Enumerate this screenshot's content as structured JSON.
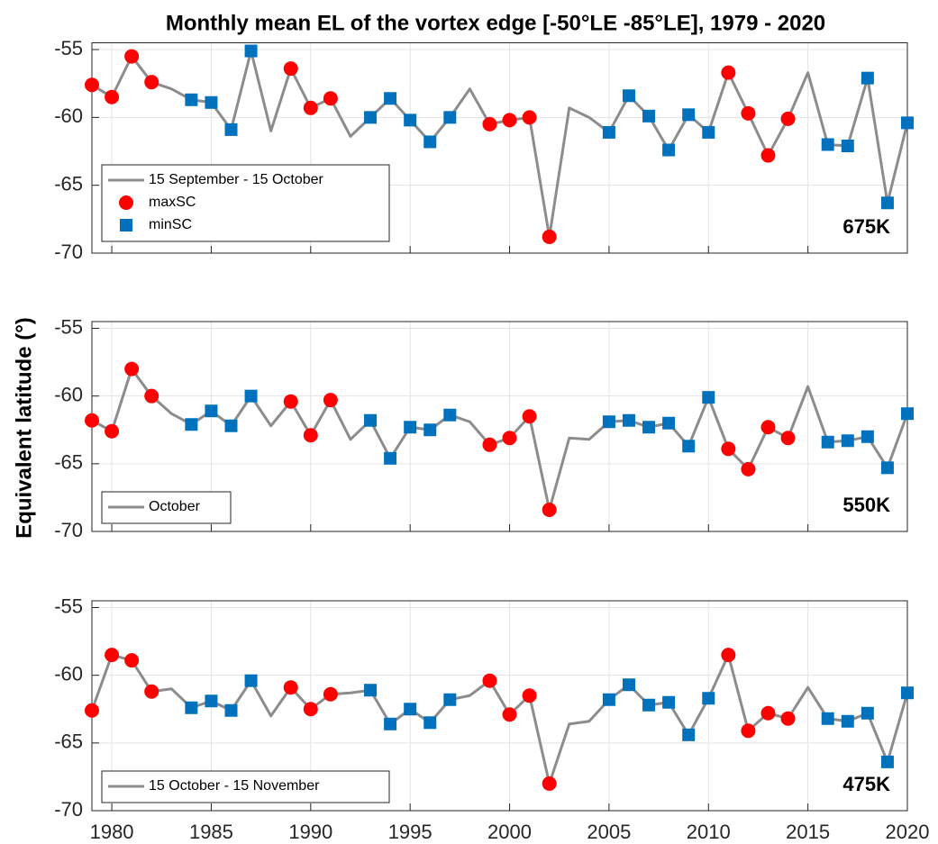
{
  "chart_data": [
    {
      "type": "line",
      "title": "Monthly mean EL of the vortex edge [-50°LE -85°LE], 1979 - 2020",
      "annotation": "675K",
      "x": [
        1979,
        1980,
        1981,
        1982,
        1983,
        1984,
        1985,
        1986,
        1987,
        1988,
        1989,
        1990,
        1991,
        1992,
        1993,
        1994,
        1995,
        1996,
        1997,
        1998,
        1999,
        2000,
        2001,
        2002,
        2003,
        2004,
        2005,
        2006,
        2007,
        2008,
        2009,
        2010,
        2011,
        2012,
        2013,
        2014,
        2015,
        2016,
        2017,
        2018,
        2019,
        2020
      ],
      "xlim": [
        1979,
        2020
      ],
      "xticks": [
        1980,
        1985,
        1990,
        1995,
        2000,
        2005,
        2010,
        2015,
        2020
      ],
      "show_xtick_labels": false,
      "ylim": [
        -70,
        -54.5
      ],
      "yticks": [
        -70,
        -65,
        -60,
        -55
      ],
      "grid": true,
      "legend": "lower left",
      "series": [
        {
          "name": "15 September - 15 October",
          "color": "#8c8c8c",
          "marker": "none",
          "values": [
            -57.6,
            -58.5,
            -55.5,
            -57.4,
            -57.9,
            -58.7,
            -58.9,
            -60.9,
            -55.1,
            -61.0,
            -56.4,
            -59.3,
            -58.6,
            -61.4,
            -60.0,
            -58.6,
            -60.2,
            -61.8,
            -60.0,
            -57.9,
            -60.5,
            -60.2,
            -60.0,
            -68.8,
            -59.3,
            -60.0,
            -61.1,
            -58.4,
            -59.9,
            -62.4,
            -59.8,
            -61.1,
            -56.7,
            -59.7,
            -62.8,
            -60.1,
            -56.7,
            -62.0,
            -62.1,
            -57.1,
            -66.3,
            -60.4
          ]
        },
        {
          "name": "maxSC",
          "color": "#ff0000",
          "marker": "circle",
          "x": [
            1979,
            1980,
            1981,
            1982,
            1989,
            1990,
            1991,
            1999,
            2000,
            2001,
            2002,
            2011,
            2012,
            2013,
            2014
          ],
          "values": [
            -57.6,
            -58.5,
            -55.5,
            -57.4,
            -56.4,
            -59.3,
            -58.6,
            -60.5,
            -60.2,
            -60.0,
            -68.8,
            -56.7,
            -59.7,
            -62.8,
            -60.1
          ]
        },
        {
          "name": "minSC",
          "color": "#0072bd",
          "marker": "square",
          "x": [
            1984,
            1985,
            1986,
            1987,
            1993,
            1994,
            1995,
            1996,
            1997,
            2005,
            2006,
            2007,
            2008,
            2009,
            2010,
            2016,
            2017,
            2018,
            2019,
            2020
          ],
          "values": [
            -58.7,
            -58.9,
            -60.9,
            -55.1,
            -60.0,
            -58.6,
            -60.2,
            -61.8,
            -60.0,
            -61.1,
            -58.4,
            -59.9,
            -62.4,
            -59.8,
            -61.1,
            -62.0,
            -62.1,
            -57.1,
            -66.3,
            -60.4
          ]
        }
      ]
    },
    {
      "type": "line",
      "ylabel": "Equivalent latitude (°)",
      "annotation": "550K",
      "x": [
        1979,
        1980,
        1981,
        1982,
        1983,
        1984,
        1985,
        1986,
        1987,
        1988,
        1989,
        1990,
        1991,
        1992,
        1993,
        1994,
        1995,
        1996,
        1997,
        1998,
        1999,
        2000,
        2001,
        2002,
        2003,
        2004,
        2005,
        2006,
        2007,
        2008,
        2009,
        2010,
        2011,
        2012,
        2013,
        2014,
        2015,
        2016,
        2017,
        2018,
        2019,
        2020
      ],
      "xlim": [
        1979,
        2020
      ],
      "xticks": [
        1980,
        1985,
        1990,
        1995,
        2000,
        2005,
        2010,
        2015,
        2020
      ],
      "show_xtick_labels": false,
      "ylim": [
        -70,
        -54.5
      ],
      "yticks": [
        -70,
        -65,
        -60,
        -55
      ],
      "grid": true,
      "legend": "lower left",
      "series": [
        {
          "name": "October",
          "color": "#8c8c8c",
          "marker": "none",
          "values": [
            -61.8,
            -62.6,
            -58.0,
            -60.0,
            -61.3,
            -62.1,
            -61.1,
            -62.2,
            -60.0,
            -62.2,
            -60.4,
            -62.9,
            -60.3,
            -63.2,
            -61.8,
            -64.6,
            -62.3,
            -62.5,
            -61.4,
            -61.9,
            -63.6,
            -63.1,
            -61.5,
            -68.4,
            -63.1,
            -63.2,
            -61.9,
            -61.8,
            -62.3,
            -62.0,
            -63.7,
            -60.1,
            -63.9,
            -65.4,
            -62.3,
            -63.1,
            -59.3,
            -63.4,
            -63.3,
            -63.0,
            -65.3,
            -61.3
          ]
        },
        {
          "color": "#ff0000",
          "marker": "circle",
          "x": [
            1979,
            1980,
            1981,
            1982,
            1989,
            1990,
            1991,
            1999,
            2000,
            2001,
            2002,
            2011,
            2012,
            2013,
            2014
          ],
          "values": [
            -61.8,
            -62.6,
            -58.0,
            -60.0,
            -60.4,
            -62.9,
            -60.3,
            -63.6,
            -63.1,
            -61.5,
            -68.4,
            -63.9,
            -65.4,
            -62.3,
            -63.1
          ]
        },
        {
          "color": "#0072bd",
          "marker": "square",
          "x": [
            1984,
            1985,
            1986,
            1987,
            1993,
            1994,
            1995,
            1996,
            1997,
            2005,
            2006,
            2007,
            2008,
            2009,
            2010,
            2016,
            2017,
            2018,
            2019,
            2020
          ],
          "values": [
            -62.1,
            -61.1,
            -62.2,
            -60.0,
            -61.8,
            -64.6,
            -62.3,
            -62.5,
            -61.4,
            -61.9,
            -61.8,
            -62.3,
            -62.0,
            -63.7,
            -60.1,
            -63.4,
            -63.3,
            -63.0,
            -65.3,
            -61.3
          ]
        }
      ]
    },
    {
      "type": "line",
      "annotation": "475K",
      "x": [
        1979,
        1980,
        1981,
        1982,
        1983,
        1984,
        1985,
        1986,
        1987,
        1988,
        1989,
        1990,
        1991,
        1992,
        1993,
        1994,
        1995,
        1996,
        1997,
        1998,
        1999,
        2000,
        2001,
        2002,
        2003,
        2004,
        2005,
        2006,
        2007,
        2008,
        2009,
        2010,
        2011,
        2012,
        2013,
        2014,
        2015,
        2016,
        2017,
        2018,
        2019,
        2020
      ],
      "xlim": [
        1979,
        2020
      ],
      "xticks": [
        1980,
        1985,
        1990,
        1995,
        2000,
        2005,
        2010,
        2015,
        2020
      ],
      "show_xtick_labels": true,
      "ylim": [
        -70,
        -54.5
      ],
      "yticks": [
        -70,
        -65,
        -60,
        -55
      ],
      "grid": true,
      "legend": "lower left",
      "series": [
        {
          "name": "15 October - 15 November",
          "color": "#8c8c8c",
          "marker": "none",
          "values": [
            -62.6,
            -58.5,
            -58.9,
            -61.2,
            -61.0,
            -62.4,
            -61.9,
            -62.6,
            -60.4,
            -63.0,
            -60.9,
            -62.5,
            -61.4,
            -61.3,
            -61.1,
            -63.6,
            -62.5,
            -63.5,
            -61.8,
            -61.5,
            -60.4,
            -62.9,
            -61.5,
            -68.0,
            -63.6,
            -63.4,
            -61.8,
            -60.7,
            -62.2,
            -62.0,
            -64.4,
            -61.7,
            -58.5,
            -64.1,
            -62.8,
            -63.2,
            -60.9,
            -63.2,
            -63.4,
            -62.8,
            -66.4,
            -61.3
          ]
        },
        {
          "color": "#ff0000",
          "marker": "circle",
          "x": [
            1979,
            1980,
            1981,
            1982,
            1989,
            1990,
            1991,
            1999,
            2000,
            2001,
            2002,
            2011,
            2012,
            2013,
            2014
          ],
          "values": [
            -62.6,
            -58.5,
            -58.9,
            -61.2,
            -60.9,
            -62.5,
            -61.4,
            -60.4,
            -62.9,
            -61.5,
            -68.0,
            -58.5,
            -64.1,
            -62.8,
            -63.2
          ]
        },
        {
          "color": "#0072bd",
          "marker": "square",
          "x": [
            1984,
            1985,
            1986,
            1987,
            1993,
            1994,
            1995,
            1996,
            1997,
            2005,
            2006,
            2007,
            2008,
            2009,
            2010,
            2016,
            2017,
            2018,
            2019,
            2020
          ],
          "values": [
            -62.4,
            -61.9,
            -62.6,
            -60.4,
            -61.1,
            -63.6,
            -62.5,
            -63.5,
            -61.8,
            -61.8,
            -60.7,
            -62.2,
            -62.0,
            -64.4,
            -61.7,
            -63.2,
            -63.4,
            -62.8,
            -66.4,
            -61.3
          ]
        }
      ]
    }
  ]
}
